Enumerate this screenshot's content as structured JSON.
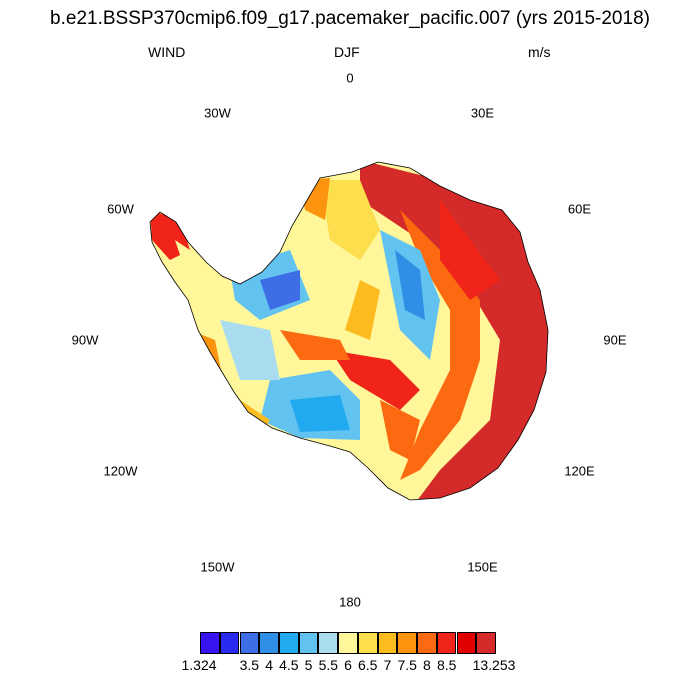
{
  "title": "b.e21.BSSP370cmip6.f09_g17.pacemaker_pacific.007 (yrs 2015-2018)",
  "variable": "WIND",
  "season": "DJF",
  "units": "m/s",
  "lon_labels": [
    "0",
    "30E",
    "60E",
    "90E",
    "120E",
    "150E",
    "180",
    "150W",
    "120W",
    "90W",
    "60W",
    "30W"
  ],
  "colorbar": {
    "colors": [
      "#3a14f0",
      "#2a2af0",
      "#3d6ee6",
      "#2f8fe6",
      "#22aaf0",
      "#62c3f0",
      "#a9dcee",
      "#fff79a",
      "#fdde4c",
      "#fcbb1f",
      "#fc9410",
      "#fb6a10",
      "#f02418",
      "#e00000",
      "#d42a2a"
    ],
    "labels": [
      "1.324",
      "3.5",
      "4",
      "4.5",
      "5",
      "5.5",
      "6",
      "6.5",
      "7",
      "7.5",
      "8",
      "8.5",
      "13.253"
    ]
  }
}
